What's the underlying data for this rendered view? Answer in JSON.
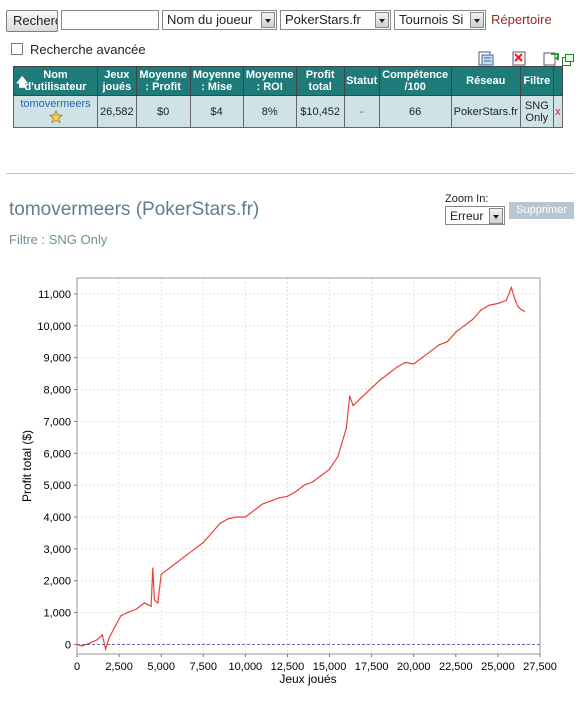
{
  "search": {
    "button_label": "Recherche",
    "input_value": "",
    "field_select": "Nom du joueur",
    "site_select": "PokerStars.fr",
    "game_select": "Tournois Si",
    "directory_link": "Répertoire",
    "advanced_label": "Recherche avancée"
  },
  "toolbar": {
    "icons": [
      "export-icon",
      "delete-icon",
      "refresh-icon"
    ]
  },
  "table": {
    "headers": {
      "user": [
        "Nom",
        "d'utilisateur"
      ],
      "games": [
        "Jeux",
        "joués"
      ],
      "avg_profit": [
        "Moyenne",
        ": Profit"
      ],
      "avg_stake": [
        "Moyenne",
        ": Mise"
      ],
      "avg_roi": [
        "Moyenne",
        ": ROI"
      ],
      "total_profit": [
        "Profit",
        "total"
      ],
      "status": [
        "Statut",
        ""
      ],
      "skill": [
        "Compétence",
        "/100"
      ],
      "network": [
        "Réseau",
        ""
      ],
      "filter": [
        "Filtre",
        ""
      ]
    },
    "row": {
      "user": "tomovermeers",
      "games": "26,582",
      "avg_profit": "$0",
      "avg_stake": "$4",
      "avg_roi": "8%",
      "total_profit": "$10,452",
      "status": "-",
      "skill": "66",
      "network": "PokerStars.fr",
      "filter": [
        "SNG",
        "Only"
      ],
      "remove": "x"
    }
  },
  "detail": {
    "title": "tomovermeers (PokerStars.fr)",
    "filter_line": "Filtre : SNG Only",
    "zoom_label": "Zoom In:",
    "zoom_select": "Erreur",
    "delete_button": "Supprimer"
  },
  "chart_data": {
    "type": "line",
    "title": "",
    "xlabel": "Jeux joués",
    "ylabel": "Profit total ($)",
    "xlim": [
      0,
      27500
    ],
    "ylim": [
      -300,
      11500
    ],
    "x_ticks": [
      "0",
      "2,500",
      "5,000",
      "7,500",
      "10,000",
      "12,500",
      "15,000",
      "17,500",
      "20,000",
      "22,500",
      "25,000",
      "27,500"
    ],
    "y_ticks": [
      "0",
      "1,000",
      "2,000",
      "3,000",
      "4,000",
      "5,000",
      "6,000",
      "7,000",
      "8,000",
      "9,000",
      "10,000",
      "11,000"
    ],
    "grid": true,
    "line_color": "#e8413a",
    "series": [
      {
        "x": [
          0,
          300,
          800,
          1200,
          1500,
          1700,
          1900,
          2200,
          2600,
          3000,
          3500,
          4000,
          4400,
          4500,
          4600,
          4800,
          5000,
          5500,
          6000,
          6500,
          7000,
          7500,
          8000,
          8500,
          9000,
          9500,
          10000,
          10500,
          11000,
          11500,
          12000,
          12500,
          13000,
          13500,
          14000,
          14500,
          15000,
          15500,
          16000,
          16200,
          16400,
          16800,
          17200,
          17600,
          18000,
          18500,
          19000,
          19500,
          20000,
          20500,
          21000,
          21500,
          22000,
          22500,
          23000,
          23500,
          24000,
          24500,
          25000,
          25500,
          25800,
          26000,
          26200,
          26400,
          26582
        ],
        "y": [
          0,
          -50,
          50,
          150,
          300,
          -150,
          200,
          500,
          900,
          1000,
          1100,
          1300,
          1200,
          2400,
          1400,
          1300,
          2200,
          2400,
          2600,
          2800,
          3000,
          3200,
          3500,
          3800,
          3950,
          4000,
          4000,
          4200,
          4400,
          4500,
          4600,
          4650,
          4800,
          5000,
          5100,
          5300,
          5500,
          5900,
          6800,
          7800,
          7500,
          7700,
          7900,
          8100,
          8300,
          8500,
          8700,
          8850,
          8800,
          9000,
          9200,
          9400,
          9500,
          9800,
          10000,
          10200,
          10500,
          10650,
          10700,
          10800,
          11200,
          10850,
          10600,
          10500,
          10452
        ]
      }
    ]
  }
}
